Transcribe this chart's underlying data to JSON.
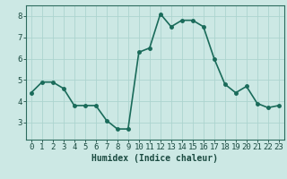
{
  "x": [
    0,
    1,
    2,
    3,
    4,
    5,
    6,
    7,
    8,
    9,
    10,
    11,
    12,
    13,
    14,
    15,
    16,
    17,
    18,
    19,
    20,
    21,
    22,
    23
  ],
  "y": [
    4.4,
    4.9,
    4.9,
    4.6,
    3.8,
    3.8,
    3.8,
    3.1,
    2.7,
    2.7,
    6.3,
    6.5,
    8.1,
    7.5,
    7.8,
    7.8,
    7.5,
    6.0,
    4.8,
    4.4,
    4.7,
    3.9,
    3.7,
    3.8
  ],
  "xlabel": "Humidex (Indice chaleur)",
  "xlim": [
    -0.5,
    23.5
  ],
  "ylim": [
    2.2,
    8.5
  ],
  "yticks": [
    3,
    4,
    5,
    6,
    7,
    8
  ],
  "xticks": [
    0,
    1,
    2,
    3,
    4,
    5,
    6,
    7,
    8,
    9,
    10,
    11,
    12,
    13,
    14,
    15,
    16,
    17,
    18,
    19,
    20,
    21,
    22,
    23
  ],
  "line_color": "#1a6b5a",
  "marker_color": "#1a6b5a",
  "bg_color": "#cce8e4",
  "grid_color": "#acd4cf",
  "axis_color": "#2d6b5e",
  "tick_label_color": "#1a4a40",
  "xlabel_color": "#1a4a40",
  "xlabel_fontsize": 7,
  "tick_fontsize": 6.5,
  "line_width": 1.2,
  "marker_size": 2.5
}
